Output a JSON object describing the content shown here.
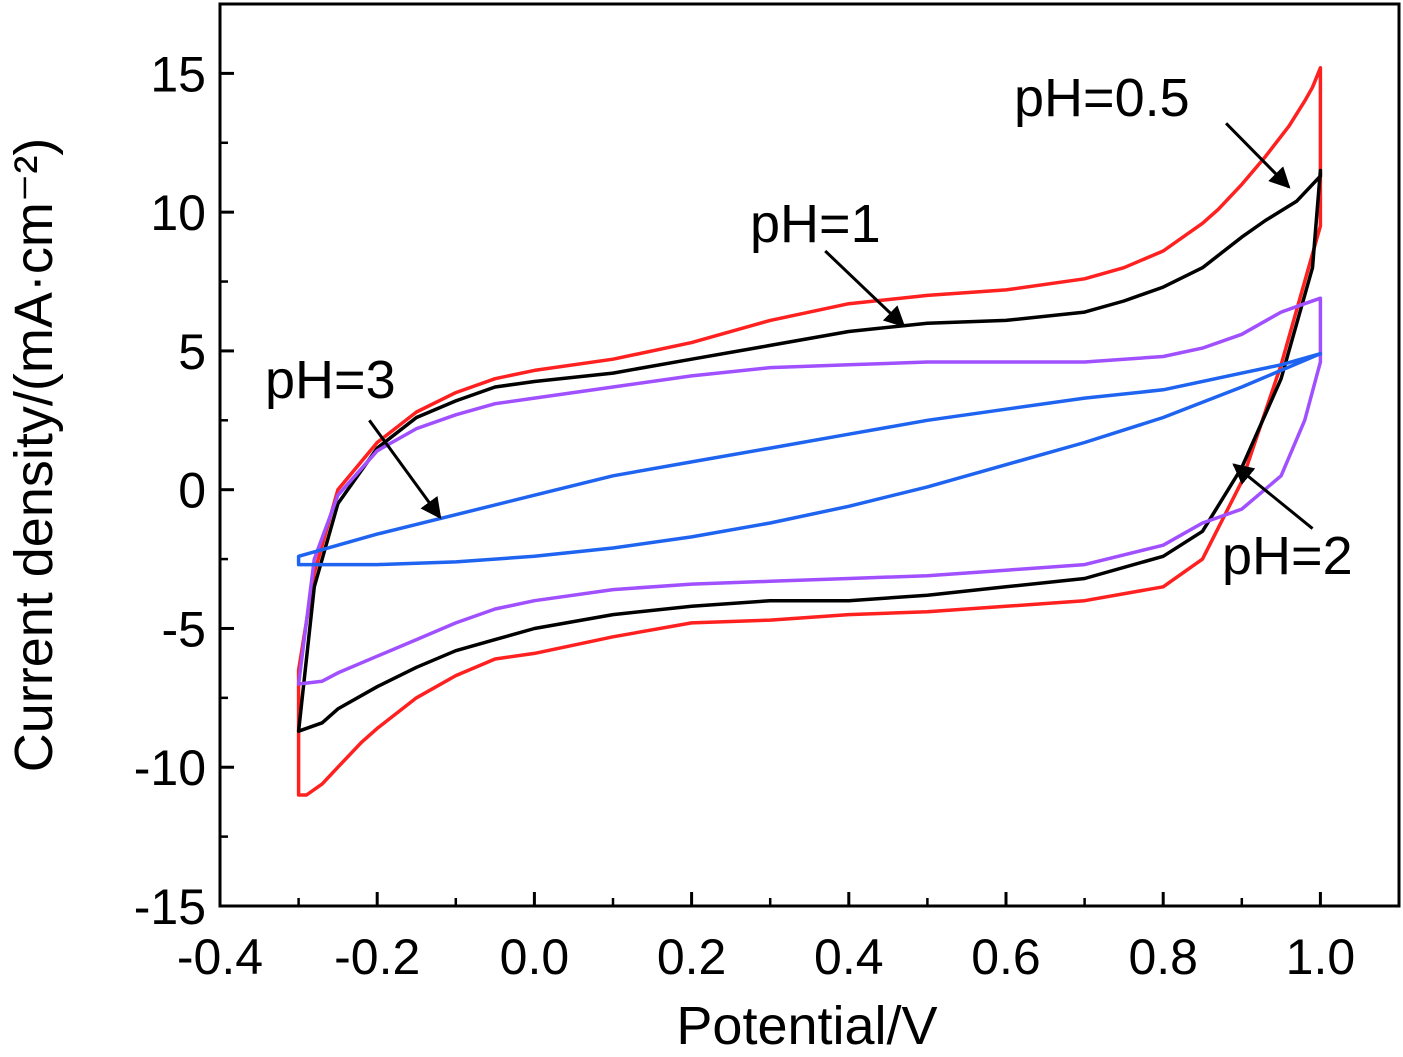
{
  "chart_data": {
    "type": "line",
    "title": "",
    "xlabel": "Potential/V",
    "ylabel": "Current density/(mA·cm⁻²)",
    "xlim": [
      -0.4,
      1.1
    ],
    "ylim": [
      -15,
      17.5
    ],
    "x_ticks": [
      -0.4,
      -0.2,
      0.0,
      0.2,
      0.4,
      0.6,
      0.8,
      1.0
    ],
    "x_tick_labels": [
      "-0.4",
      "-0.2",
      "0.0",
      "0.2",
      "0.4",
      "0.6",
      "0.8",
      "1.0"
    ],
    "y_ticks": [
      -15,
      -10,
      -5,
      0,
      5,
      10,
      15
    ],
    "y_tick_labels": [
      "-15",
      "-10",
      "-5",
      "0",
      "5",
      "10",
      "15"
    ],
    "grid": false,
    "legend": "none (series labelled by arrow annotations)",
    "series": [
      {
        "name": "pH=0.5",
        "color": "#ff2020",
        "x": [
          -0.3,
          -0.29,
          -0.27,
          -0.25,
          -0.22,
          -0.2,
          -0.15,
          -0.1,
          -0.05,
          0.0,
          0.1,
          0.2,
          0.3,
          0.4,
          0.5,
          0.6,
          0.7,
          0.8,
          0.85,
          0.9,
          0.95,
          1.0,
          1.0,
          0.99,
          0.98,
          0.96,
          0.93,
          0.9,
          0.87,
          0.85,
          0.8,
          0.75,
          0.7,
          0.6,
          0.5,
          0.4,
          0.3,
          0.2,
          0.1,
          0.0,
          -0.05,
          -0.1,
          -0.15,
          -0.2,
          -0.25,
          -0.28,
          -0.3,
          -0.3
        ],
        "y": [
          -11.0,
          -11.0,
          -10.6,
          -10.0,
          -9.1,
          -8.6,
          -7.5,
          -6.7,
          -6.1,
          -5.9,
          -5.3,
          -4.8,
          -4.7,
          -4.5,
          -4.4,
          -4.2,
          -4.0,
          -3.5,
          -2.5,
          0.3,
          4.5,
          9.5,
          15.2,
          14.5,
          14.0,
          13.1,
          12.0,
          11.0,
          10.1,
          9.6,
          8.6,
          8.0,
          7.6,
          7.2,
          7.0,
          6.7,
          6.1,
          5.3,
          4.7,
          4.3,
          4.0,
          3.5,
          2.8,
          1.7,
          0.0,
          -3.0,
          -6.5,
          -11.0
        ]
      },
      {
        "name": "pH=1",
        "color": "#000000",
        "x": [
          -0.3,
          -0.27,
          -0.25,
          -0.2,
          -0.15,
          -0.1,
          -0.05,
          0.0,
          0.1,
          0.2,
          0.3,
          0.4,
          0.5,
          0.6,
          0.7,
          0.8,
          0.85,
          0.9,
          0.95,
          0.99,
          1.0,
          1.0,
          0.97,
          0.93,
          0.9,
          0.85,
          0.8,
          0.75,
          0.7,
          0.6,
          0.5,
          0.4,
          0.3,
          0.2,
          0.1,
          0.0,
          -0.05,
          -0.1,
          -0.15,
          -0.2,
          -0.25,
          -0.28,
          -0.3
        ],
        "y": [
          -8.7,
          -8.4,
          -7.9,
          -7.1,
          -6.4,
          -5.8,
          -5.4,
          -5.0,
          -4.5,
          -4.2,
          -4.0,
          -4.0,
          -3.8,
          -3.5,
          -3.2,
          -2.4,
          -1.5,
          0.8,
          4.0,
          8.0,
          11.5,
          11.3,
          10.4,
          9.7,
          9.1,
          8.0,
          7.3,
          6.8,
          6.4,
          6.1,
          6.0,
          5.7,
          5.2,
          4.7,
          4.2,
          3.9,
          3.7,
          3.2,
          2.6,
          1.5,
          -0.5,
          -3.5,
          -8.7
        ]
      },
      {
        "name": "pH=2",
        "color": "#a050ff",
        "x": [
          -0.3,
          -0.27,
          -0.25,
          -0.2,
          -0.15,
          -0.1,
          -0.05,
          0.0,
          0.1,
          0.2,
          0.3,
          0.4,
          0.5,
          0.6,
          0.7,
          0.8,
          0.85,
          0.9,
          0.95,
          0.98,
          1.0,
          1.0,
          0.98,
          0.95,
          0.9,
          0.85,
          0.8,
          0.7,
          0.6,
          0.5,
          0.4,
          0.3,
          0.2,
          0.1,
          0.0,
          -0.05,
          -0.1,
          -0.15,
          -0.2,
          -0.25,
          -0.28,
          -0.3
        ],
        "y": [
          -7.0,
          -6.9,
          -6.6,
          -6.0,
          -5.4,
          -4.8,
          -4.3,
          -4.0,
          -3.6,
          -3.4,
          -3.3,
          -3.2,
          -3.1,
          -2.9,
          -2.7,
          -2.0,
          -1.2,
          -0.7,
          0.5,
          2.5,
          4.6,
          6.9,
          6.7,
          6.4,
          5.6,
          5.1,
          4.8,
          4.6,
          4.6,
          4.6,
          4.5,
          4.4,
          4.1,
          3.7,
          3.3,
          3.1,
          2.7,
          2.2,
          1.4,
          -0.2,
          -2.5,
          -7.0
        ]
      },
      {
        "name": "pH=3",
        "color": "#1e64f0",
        "x": [
          -0.3,
          -0.25,
          -0.2,
          -0.1,
          0.0,
          0.1,
          0.2,
          0.3,
          0.4,
          0.5,
          0.6,
          0.7,
          0.8,
          0.9,
          0.95,
          1.0,
          0.9,
          0.8,
          0.7,
          0.6,
          0.5,
          0.4,
          0.3,
          0.2,
          0.1,
          0.0,
          -0.1,
          -0.2,
          -0.25,
          -0.3,
          -0.3
        ],
        "y": [
          -2.4,
          -2.0,
          -1.6,
          -0.9,
          -0.2,
          0.5,
          1.0,
          1.5,
          2.0,
          2.5,
          2.9,
          3.3,
          3.6,
          4.2,
          4.5,
          4.9,
          3.7,
          2.6,
          1.7,
          0.9,
          0.1,
          -0.6,
          -1.2,
          -1.7,
          -2.1,
          -2.4,
          -2.6,
          -2.7,
          -2.7,
          -2.7,
          -2.4
        ]
      }
    ],
    "annotations": [
      {
        "text": "pH=0.5",
        "arrow_from": [
          0.88,
          13.2
        ],
        "arrow_to": [
          0.96,
          10.9
        ]
      },
      {
        "text": "pH=1",
        "arrow_from": [
          0.37,
          8.6
        ],
        "arrow_to": [
          0.47,
          5.9
        ]
      },
      {
        "text": "pH=3",
        "arrow_from": [
          -0.21,
          2.5
        ],
        "arrow_to": [
          -0.12,
          -1.0
        ]
      },
      {
        "text": "pH=2",
        "arrow_from": [
          0.99,
          -1.4
        ],
        "arrow_to": [
          0.89,
          0.9
        ]
      }
    ]
  }
}
